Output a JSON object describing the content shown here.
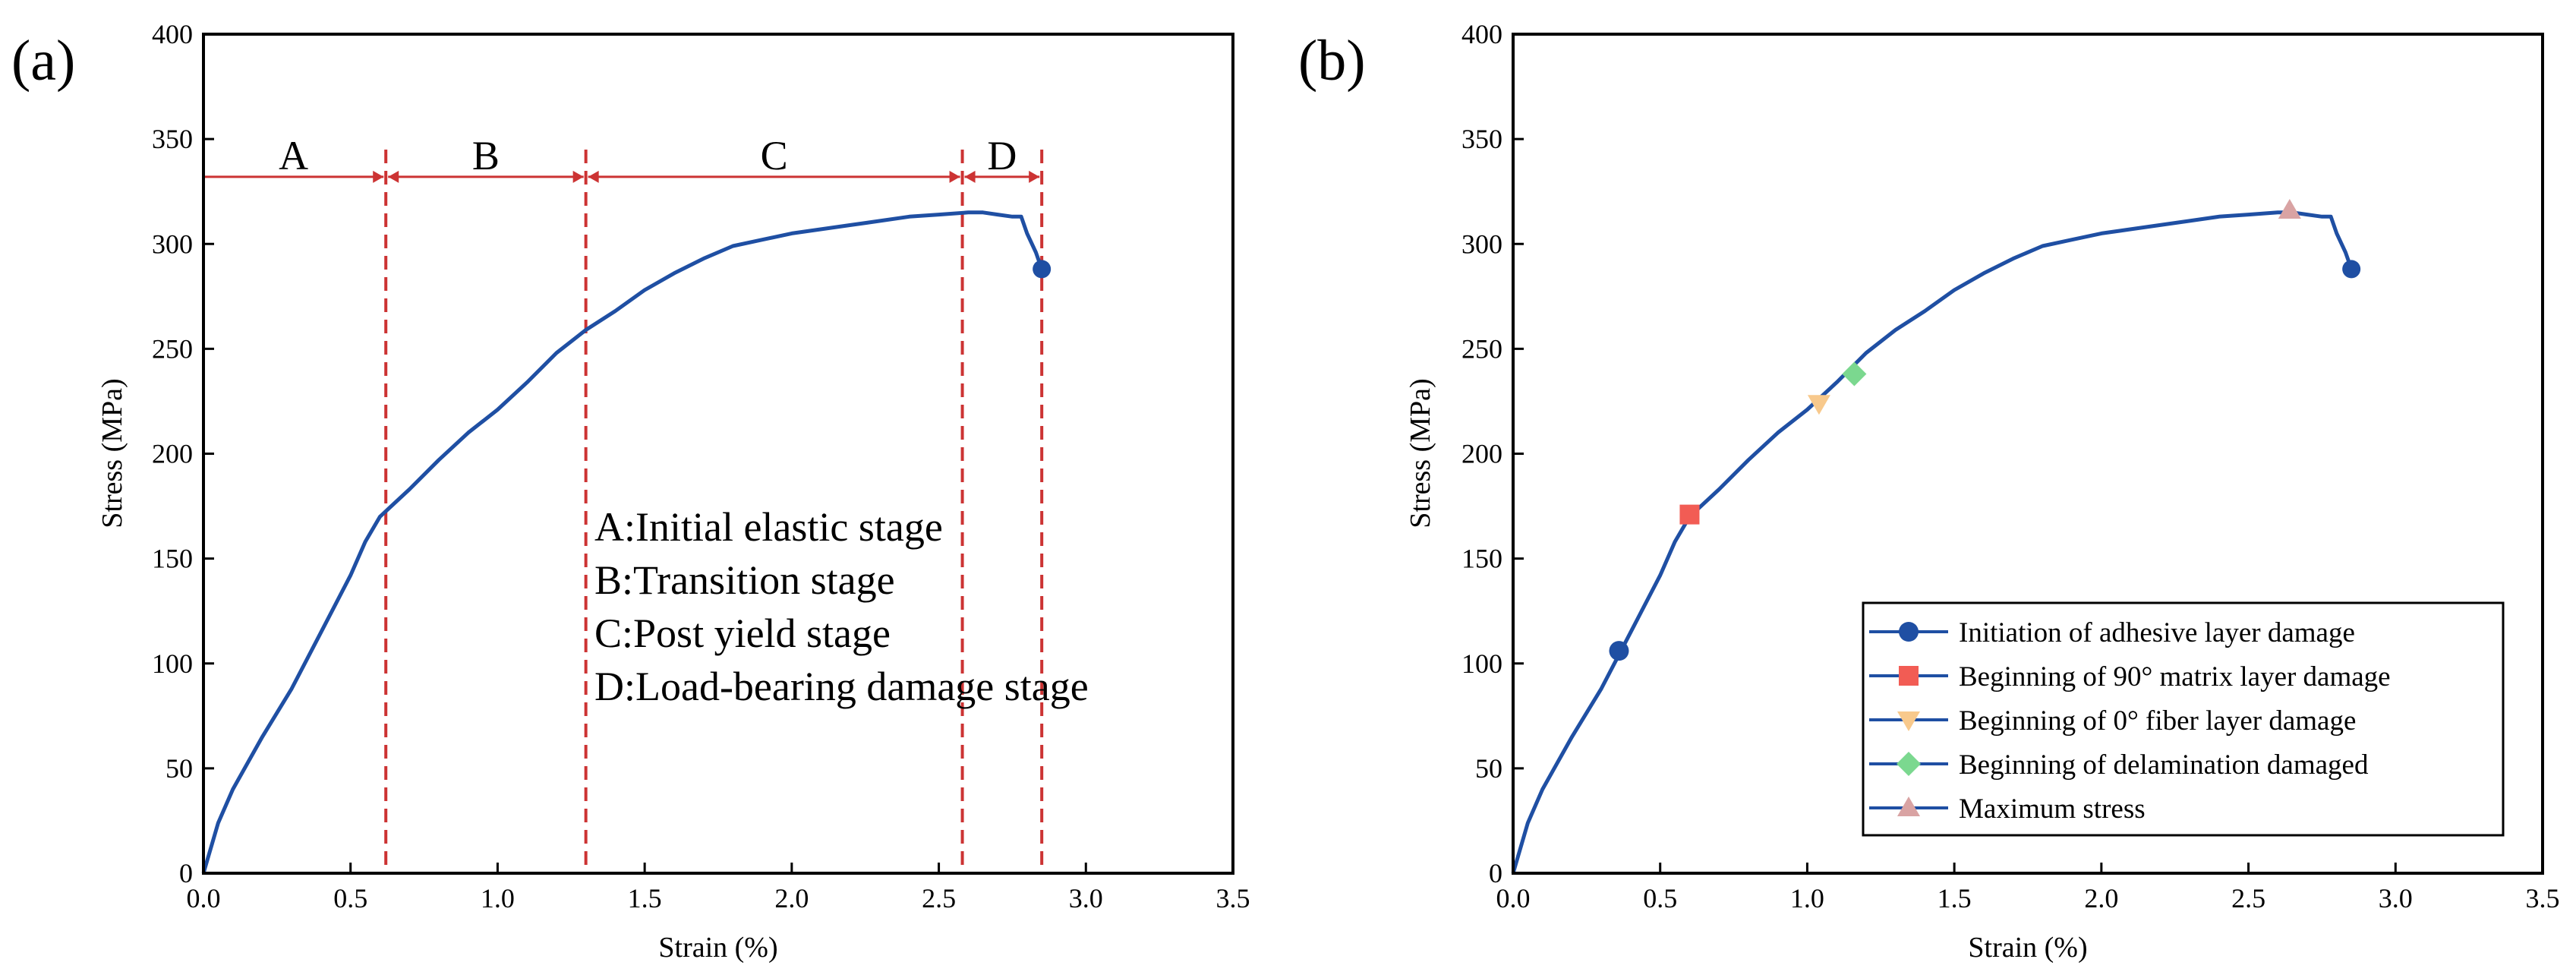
{
  "chart_data": [
    {
      "panel_label": "(a)",
      "type": "line",
      "xlabel": "Strain (%)",
      "ylabel": "Stress (MPa)",
      "xlim": [
        0,
        3.5
      ],
      "ylim": [
        0,
        400
      ],
      "xticks": [
        "0.0",
        "0.5",
        "1.0",
        "1.5",
        "2.0",
        "2.5",
        "3.0",
        "3.5"
      ],
      "yticks": [
        "0",
        "50",
        "100",
        "150",
        "200",
        "250",
        "300",
        "350",
        "400"
      ],
      "line_color": "#1f4fa3",
      "divider_color": "#cc3333",
      "curve": {
        "x": [
          0,
          0.05,
          0.1,
          0.2,
          0.3,
          0.4,
          0.5,
          0.55,
          0.6,
          0.7,
          0.8,
          0.9,
          1.0,
          1.1,
          1.2,
          1.3,
          1.4,
          1.5,
          1.6,
          1.7,
          1.8,
          1.9,
          2.0,
          2.1,
          2.2,
          2.3,
          2.4,
          2.5,
          2.6,
          2.65,
          2.7,
          2.75,
          2.78,
          2.8,
          2.83,
          2.85
        ],
        "y": [
          0,
          24,
          40,
          65,
          88,
          115,
          142,
          158,
          170,
          183,
          197,
          210,
          221,
          234,
          248,
          259,
          268,
          278,
          286,
          293,
          299,
          302,
          305,
          307,
          309,
          311,
          313,
          314,
          315,
          315,
          314,
          313,
          313,
          305,
          296,
          288
        ]
      },
      "end_point": {
        "x": 2.85,
        "y": 288
      },
      "stage_boundaries": [
        0,
        0.62,
        1.3,
        2.58,
        2.85
      ],
      "arrow_level": 332,
      "stages": [
        {
          "label": "A",
          "description": "A:Initial elastic stage"
        },
        {
          "label": "B",
          "description": "B:Transition stage"
        },
        {
          "label": "C",
          "description": "C:Post yield stage"
        },
        {
          "label": "D",
          "description": "D:Load-bearing damage stage"
        }
      ]
    },
    {
      "panel_label": "(b)",
      "type": "line",
      "xlabel": "Strain (%)",
      "ylabel": "Stress (MPa)",
      "xlim": [
        0,
        3.5
      ],
      "ylim": [
        0,
        400
      ],
      "xticks": [
        "0.0",
        "0.5",
        "1.0",
        "1.5",
        "2.0",
        "2.5",
        "3.0",
        "3.5"
      ],
      "yticks": [
        "0",
        "50",
        "100",
        "150",
        "200",
        "250",
        "300",
        "350",
        "400"
      ],
      "line_color": "#1f4fa3",
      "curve": {
        "x": [
          0,
          0.05,
          0.1,
          0.2,
          0.3,
          0.4,
          0.5,
          0.55,
          0.6,
          0.7,
          0.8,
          0.9,
          1.0,
          1.1,
          1.2,
          1.3,
          1.4,
          1.5,
          1.6,
          1.7,
          1.8,
          1.9,
          2.0,
          2.1,
          2.2,
          2.3,
          2.4,
          2.5,
          2.6,
          2.65,
          2.7,
          2.75,
          2.78,
          2.8,
          2.83,
          2.85
        ],
        "y": [
          0,
          24,
          40,
          65,
          88,
          115,
          142,
          158,
          170,
          183,
          197,
          210,
          221,
          234,
          248,
          259,
          268,
          278,
          286,
          293,
          299,
          302,
          305,
          307,
          309,
          311,
          313,
          314,
          315,
          315,
          314,
          313,
          313,
          305,
          296,
          288
        ]
      },
      "markers": [
        {
          "name": "Initiation of adhesive layer damage",
          "x": 0.36,
          "y": 106,
          "shape": "circle",
          "color": "#1f4fa3"
        },
        {
          "name": "Beginning of 90° matrix layer damage",
          "x": 0.6,
          "y": 171,
          "shape": "square",
          "color": "#f25c54"
        },
        {
          "name": "Beginning of 0° fiber layer damage",
          "x": 1.04,
          "y": 224,
          "shape": "triangle-down",
          "color": "#f8c98c"
        },
        {
          "name": "Beginning of delamination  damaged",
          "x": 1.16,
          "y": 238,
          "shape": "diamond",
          "color": "#7bd88f"
        },
        {
          "name": "Maximum stress",
          "x": 2.64,
          "y": 316,
          "shape": "triangle-up",
          "color": "#d9a3a3"
        }
      ],
      "end_point": {
        "x": 2.85,
        "y": 288
      },
      "legend_position": "bottom-right"
    }
  ]
}
